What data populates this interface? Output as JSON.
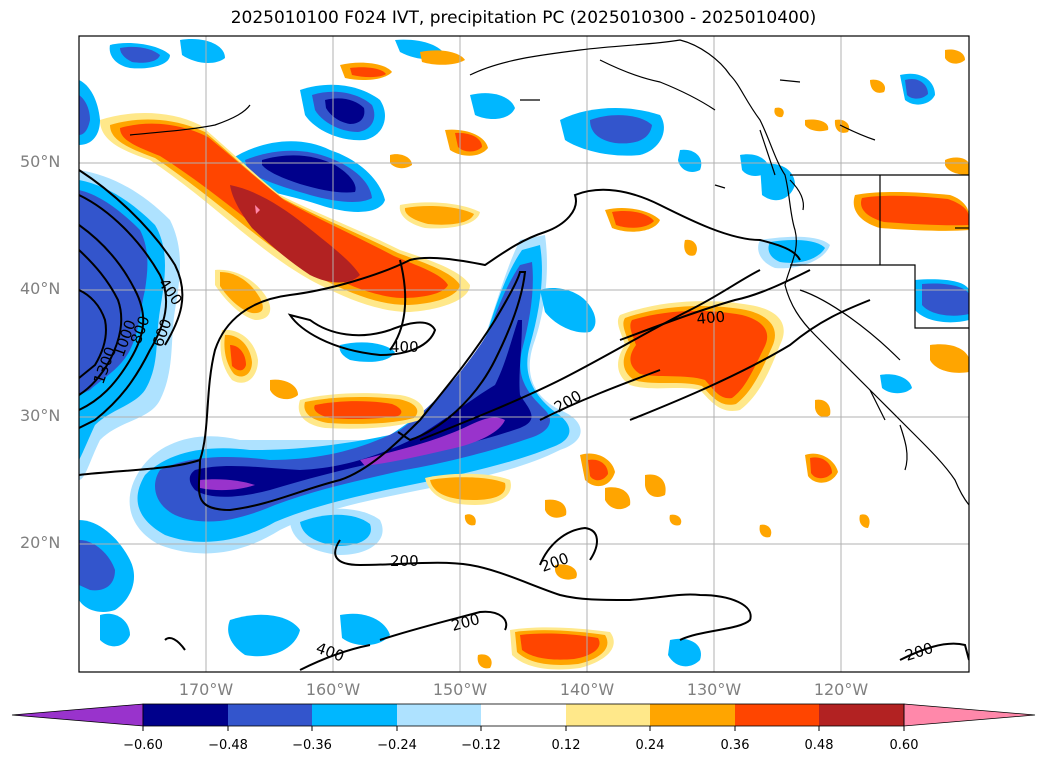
{
  "title": "2025010100 F024 IVT, precipitation PC (2025010300 - 2025010400)",
  "map": {
    "lat_labels": [
      "50°N",
      "40°N",
      "30°N",
      "20°N"
    ],
    "lon_labels": [
      "170°W",
      "160°W",
      "150°W",
      "140°W",
      "130°W",
      "120°W"
    ],
    "contour_labels": [
      "1300",
      "1000",
      "800",
      "600",
      "400",
      "400",
      "400",
      "200",
      "200",
      "200",
      "200",
      "400",
      "200"
    ]
  },
  "colorbar": {
    "ticks": [
      "−0.60",
      "−0.48",
      "−0.36",
      "−0.24",
      "−0.12",
      "0.12",
      "0.24",
      "0.36",
      "0.48",
      "0.60"
    ],
    "colors": [
      "#9933cc",
      "#00008b",
      "#3355cc",
      "#00b7ff",
      "#aee2ff",
      "#ffffff",
      "#ffe88a",
      "#ffa500",
      "#ff4500",
      "#b22222",
      "#ff88aa"
    ]
  },
  "colors": {
    "purple": "#9933cc",
    "navy": "#00008b",
    "blue": "#3355cc",
    "cyan": "#00b7ff",
    "lightblue": "#aee2ff",
    "yellow": "#ffe88a",
    "orange": "#ffa500",
    "redorange": "#ff4500",
    "darkred": "#b22222",
    "pink": "#ff88aa"
  }
}
